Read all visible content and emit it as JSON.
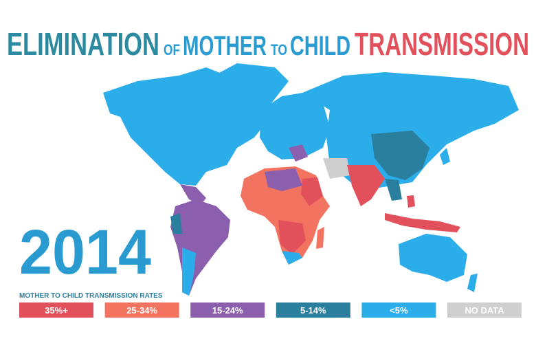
{
  "header": {
    "title_parts": [
      "ELIMINATION",
      "OF",
      "MOTHER",
      "TO",
      "CHILD",
      "TRANSMISSION"
    ]
  },
  "year": "2014",
  "legend": {
    "title": "MOTHER TO CHILD TRANSMISSION RATES",
    "items": [
      {
        "label": "35%+",
        "color": "#e2505c"
      },
      {
        "label": "25-34%",
        "color": "#f2735f"
      },
      {
        "label": "15-24%",
        "color": "#8c5fae"
      },
      {
        "label": "5-14%",
        "color": "#2a7f9f"
      },
      {
        "label": "<5%",
        "color": "#2badea"
      },
      {
        "label": "NO DATA",
        "color": "#cfcfcf"
      }
    ]
  }
}
